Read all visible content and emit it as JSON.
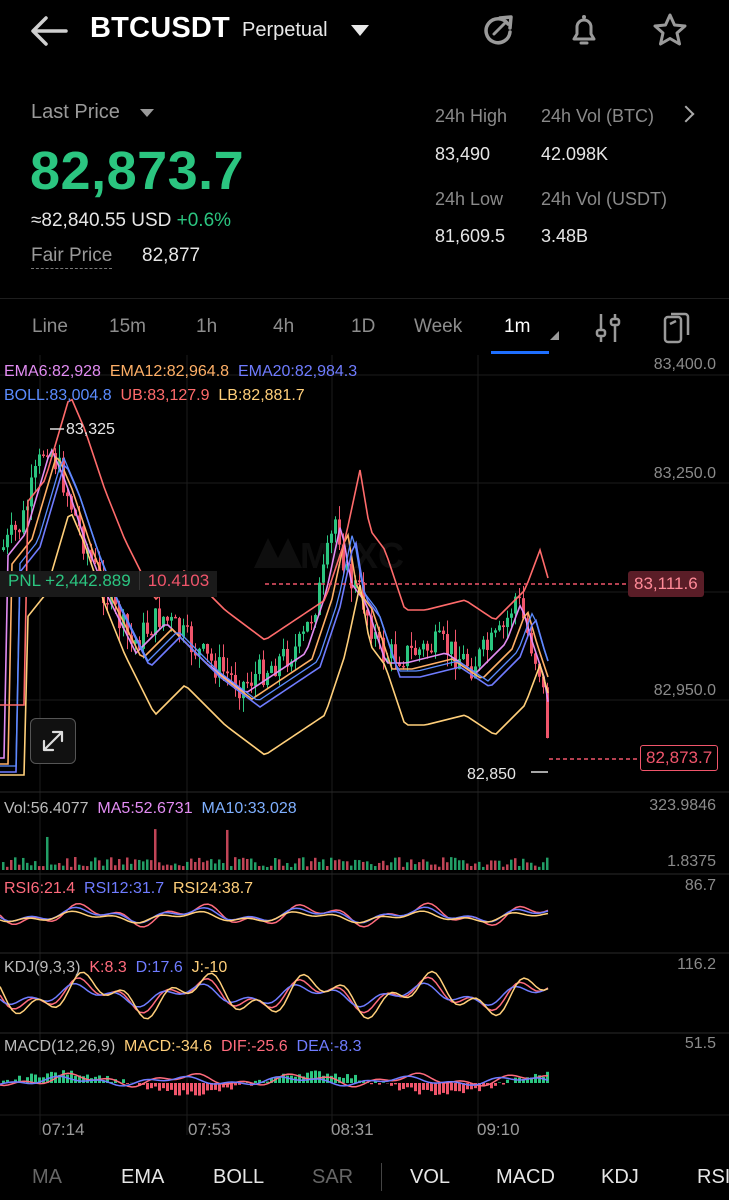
{
  "header": {
    "symbol": "BTCUSDT",
    "contract_type": "Perpetual"
  },
  "price": {
    "label": "Last Price",
    "last": "82,873.7",
    "usd_approx": "≈82,840.55 USD",
    "change_pct": "+0.6%",
    "fair_label": "Fair Price",
    "fair_value": "82,877"
  },
  "stats": {
    "high_label": "24h High",
    "high_value": "83,490",
    "vol_btc_label": "24h Vol (BTC)",
    "vol_btc_value": "42.098K",
    "low_label": "24h Low",
    "low_value": "81,609.5",
    "vol_usdt_label": "24h Vol  (USDT)",
    "vol_usdt_value": "3.48B"
  },
  "timeframes": [
    "Line",
    "15m",
    "1h",
    "4h",
    "1D",
    "Week",
    "1m"
  ],
  "active_timeframe": "1m",
  "indicators": {
    "ema6": "EMA6:82,928",
    "ema12": "EMA12:82,964.8",
    "ema20": "EMA20:82,984.3",
    "boll": "BOLL:83,004.8",
    "ub": "UB:83,127.9",
    "lb": "LB:82,881.7"
  },
  "price_axis": [
    "83,400.0",
    "83,250.0",
    "82,950.0"
  ],
  "markers": {
    "high": "83,325",
    "low": "82,850",
    "position_price": "83,111.6",
    "current_price": "82,873.7"
  },
  "pnl": {
    "value": "PNL +2,442.889",
    "amount": "10.4103"
  },
  "watermark": "MEXC",
  "volume": {
    "vol": "Vol:56.4077",
    "ma5": "MA5:52.6731",
    "ma10": "MA10:33.028",
    "axis_top": "323.9846",
    "axis_bottom": "1.8375"
  },
  "rsi": {
    "rsi6": "RSI6:21.4",
    "rsi12": "RSI12:31.7",
    "rsi24": "RSI24:38.7",
    "axis_top": "86.7"
  },
  "kdj": {
    "title": "KDJ(9,3,3)",
    "k": "K:8.3",
    "d": "D:17.6",
    "j": "J:-10",
    "axis_top": "116.2"
  },
  "macd": {
    "title": "MACD(12,26,9)",
    "macd": "MACD:-34.6",
    "dif": "DIF:-25.6",
    "dea": "DEA:-8.3",
    "axis_top": "51.5"
  },
  "time_labels": [
    "07:14",
    "07:53",
    "08:31",
    "09:10"
  ],
  "bottom_tabs": [
    "MA",
    "EMA",
    "BOLL",
    "SAR",
    "VOL",
    "MACD",
    "KDJ",
    "RSI"
  ],
  "colors": {
    "green": "#2bc580",
    "red": "#f0556b",
    "ema6": "#e28cf2",
    "ema12": "#ffb067",
    "ema20": "#6f7cff",
    "boll": "#5b8cff",
    "ub": "#ff6b6b",
    "lb": "#ffcf7a"
  }
}
